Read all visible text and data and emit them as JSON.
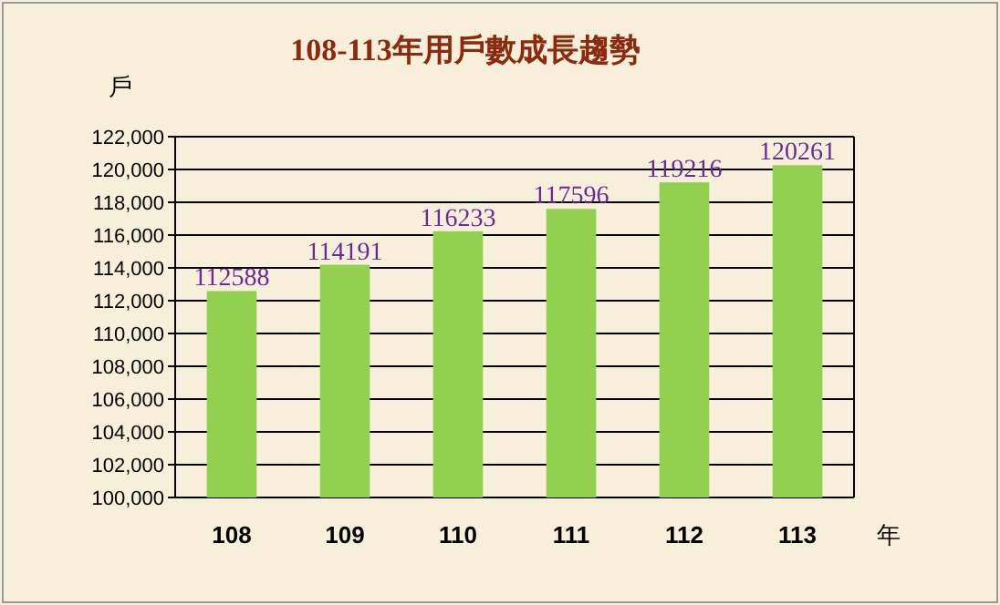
{
  "chart_data": {
    "type": "bar",
    "title": "108-113年用戶數成長趨勢",
    "xlabel": "年",
    "ylabel": "戶",
    "categories": [
      "108",
      "109",
      "110",
      "111",
      "112",
      "113"
    ],
    "values": [
      112588,
      114191,
      116233,
      117596,
      119216,
      120261
    ],
    "color": "#92d050",
    "ylim": [
      100000,
      122000
    ],
    "yticks": [
      {
        "value": 100000,
        "label": "100,000"
      },
      {
        "value": 102000,
        "label": "102,000"
      },
      {
        "value": 104000,
        "label": "104,000"
      },
      {
        "value": 106000,
        "label": "106,000"
      },
      {
        "value": 108000,
        "label": "108,000"
      },
      {
        "value": 110000,
        "label": "110,000"
      },
      {
        "value": 112000,
        "label": "112,000"
      },
      {
        "value": 114000,
        "label": "114,000"
      },
      {
        "value": 116000,
        "label": "116,000"
      },
      {
        "value": 118000,
        "label": "118,000"
      },
      {
        "value": 120000,
        "label": "120,000"
      },
      {
        "value": 122000,
        "label": "122,000"
      }
    ],
    "grid": "y",
    "data_labels": true
  }
}
